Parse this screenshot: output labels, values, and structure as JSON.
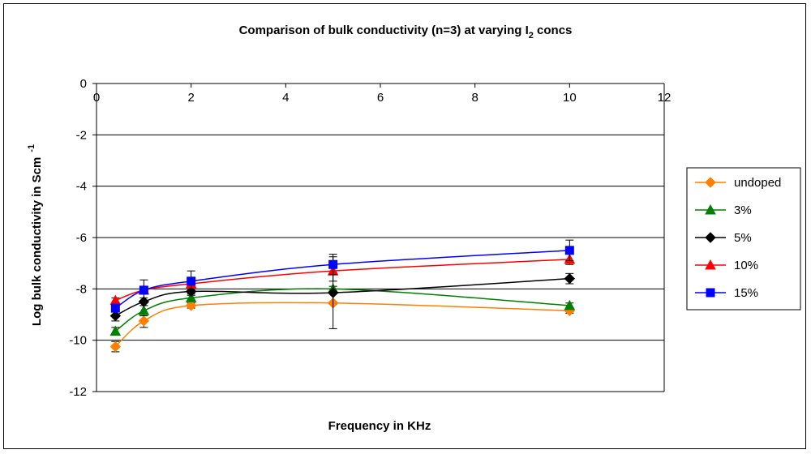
{
  "chart_data": {
    "type": "scatter",
    "title": {
      "prefix": "Comparison of bulk conductivity (n=3) at varying I",
      "subscript": "2",
      "suffix": " concs"
    },
    "xlabel": "Frequency in KHz",
    "ylabel": {
      "text": "Log bulk conductivity in Scm",
      "superscript": "-1"
    },
    "xlim": [
      0,
      12
    ],
    "ylim": [
      -12,
      0
    ],
    "xticks": [
      0,
      2,
      4,
      6,
      8,
      10,
      12
    ],
    "yticks": [
      0,
      -2,
      -4,
      -6,
      -8,
      -10,
      -12
    ],
    "grid": "horizontal",
    "legend_position": "right",
    "x": [
      0.4,
      1,
      2,
      5,
      10
    ],
    "series": [
      {
        "name": "undoped",
        "color": "#FF7F00",
        "marker": "diamond",
        "values": [
          -10.25,
          -9.25,
          -8.65,
          -8.55,
          -8.85
        ],
        "errors": [
          0.2,
          0.25,
          0.1,
          0.05,
          0.1
        ]
      },
      {
        "name": "3%",
        "color": "#008000",
        "marker": "triangle",
        "values": [
          -9.65,
          -8.85,
          -8.35,
          -8.0,
          -8.65
        ],
        "errors": [
          0.15,
          0.2,
          0.1,
          0.1,
          0.1
        ]
      },
      {
        "name": "5%",
        "color": "#000000",
        "marker": "diamond",
        "values": [
          -9.05,
          -8.5,
          -8.1,
          -8.15,
          -7.6
        ],
        "errors": [
          0.2,
          0.15,
          0.1,
          1.4,
          0.2
        ]
      },
      {
        "name": "10%",
        "color": "#FF0000",
        "marker": "triangle",
        "values": [
          -8.45,
          -8.05,
          -7.8,
          -7.3,
          -6.85
        ],
        "errors": [
          0.1,
          0.1,
          0.1,
          0.4,
          0.2
        ]
      },
      {
        "name": "15%",
        "color": "#0000FF",
        "marker": "square",
        "values": [
          -8.75,
          -8.05,
          -7.7,
          -7.05,
          -6.5
        ],
        "errors": [
          0.15,
          0.4,
          0.4,
          0.4,
          0.4
        ]
      }
    ]
  }
}
